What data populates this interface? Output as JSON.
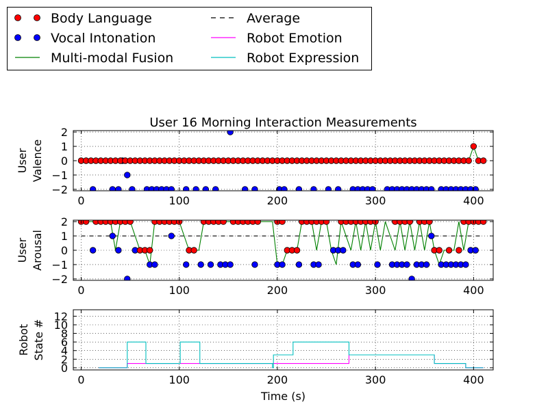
{
  "legend": {
    "items": [
      {
        "label": "Body Language",
        "kind": "marker",
        "color": "#ff0000"
      },
      {
        "label": "Vocal Intonation",
        "kind": "marker",
        "color": "#0000ff"
      },
      {
        "label": "Multi-modal Fusion",
        "kind": "line",
        "color": "#008000"
      },
      {
        "label": "Average",
        "kind": "dashed",
        "color": "#000000"
      },
      {
        "label": "Robot Emotion",
        "kind": "line",
        "color": "#ff00ff"
      },
      {
        "label": "Robot Expression",
        "kind": "line",
        "color": "#00bfbf"
      }
    ]
  },
  "chart_data": [
    {
      "type": "scatter",
      "title": "User 16 Morning Interaction Measurements",
      "ylabel": "User Valence",
      "xlabel": "",
      "xlim": [
        -8,
        420
      ],
      "ylim": [
        -2.1,
        2.1
      ],
      "xticks": [
        0,
        100,
        200,
        300,
        400
      ],
      "yticks": [
        -2,
        -1,
        0,
        1,
        2
      ],
      "grid": true,
      "series": [
        {
          "name": "Body Language",
          "color": "#ff0000",
          "x": [
            0,
            5,
            10,
            15,
            20,
            25,
            30,
            35,
            40,
            45,
            50,
            55,
            60,
            65,
            70,
            75,
            80,
            85,
            90,
            95,
            100,
            105,
            110,
            115,
            120,
            125,
            130,
            135,
            140,
            145,
            150,
            155,
            160,
            165,
            170,
            175,
            180,
            185,
            190,
            195,
            200,
            205,
            210,
            215,
            220,
            225,
            230,
            235,
            240,
            245,
            250,
            255,
            260,
            265,
            270,
            275,
            280,
            285,
            290,
            295,
            300,
            305,
            310,
            315,
            320,
            325,
            330,
            335,
            340,
            345,
            350,
            355,
            360,
            365,
            370,
            375,
            380,
            385,
            390,
            395,
            400,
            405,
            410
          ],
          "y": [
            0,
            0,
            0,
            0,
            0,
            0,
            0,
            0,
            0,
            0,
            0,
            0,
            0,
            0,
            0,
            0,
            0,
            0,
            0,
            0,
            0,
            0,
            0,
            0,
            0,
            0,
            0,
            0,
            0,
            0,
            0,
            0,
            0,
            0,
            0,
            0,
            0,
            0,
            0,
            0,
            0,
            0,
            0,
            0,
            0,
            0,
            0,
            0,
            0,
            0,
            0,
            0,
            0,
            0,
            0,
            0,
            0,
            0,
            0,
            0,
            0,
            0,
            0,
            0,
            0,
            0,
            0,
            0,
            0,
            0,
            0,
            0,
            0,
            0,
            0,
            0,
            0,
            0,
            0,
            0,
            1,
            0,
            0
          ]
        },
        {
          "name": "Vocal Intonation",
          "color": "#0000ff",
          "x": [
            12,
            32,
            38,
            42,
            47,
            52,
            67,
            72,
            77,
            82,
            87,
            92,
            107,
            117,
            127,
            137,
            152,
            167,
            177,
            202,
            207,
            222,
            237,
            252,
            262,
            277,
            282,
            287,
            292,
            297,
            312,
            317,
            322,
            327,
            332,
            337,
            342,
            347,
            352,
            357,
            367,
            372,
            377,
            382,
            387,
            392,
            397,
            402
          ],
          "y": [
            -2,
            -2,
            -2,
            0,
            -1,
            -2,
            -2,
            -2,
            -2,
            -2,
            -2,
            -2,
            -2,
            -2,
            -2,
            -2,
            2,
            -2,
            -2,
            -2,
            -2,
            -2,
            -2,
            -2,
            -2,
            -2,
            -2,
            -2,
            -2,
            -2,
            -2,
            -2,
            -2,
            -2,
            -2,
            -2,
            -2,
            -2,
            -2,
            -2,
            -2,
            -2,
            -2,
            -2,
            -2,
            -2,
            -2,
            -2
          ]
        },
        {
          "name": "Multi-modal Fusion",
          "color": "#008000",
          "x": [
            0,
            395,
            400,
            405,
            410
          ],
          "y": [
            0,
            0,
            1,
            0,
            0
          ]
        }
      ]
    },
    {
      "type": "scatter",
      "title": "",
      "ylabel": "User Arousal",
      "xlabel": "",
      "xlim": [
        -8,
        420
      ],
      "ylim": [
        -2.1,
        2.1
      ],
      "xticks": [
        0,
        100,
        200,
        300,
        400
      ],
      "yticks": [
        -2,
        -1,
        0,
        1,
        2
      ],
      "grid": true,
      "series": [
        {
          "name": "Body Language",
          "color": "#ff0000",
          "x": [
            0,
            5,
            15,
            20,
            25,
            30,
            35,
            40,
            45,
            50,
            60,
            65,
            70,
            75,
            80,
            85,
            90,
            95,
            100,
            110,
            115,
            125,
            130,
            135,
            140,
            145,
            155,
            160,
            165,
            170,
            175,
            180,
            200,
            205,
            210,
            215,
            220,
            225,
            230,
            235,
            240,
            245,
            250,
            265,
            270,
            275,
            280,
            285,
            290,
            295,
            300,
            320,
            325,
            330,
            335,
            345,
            350,
            355,
            360,
            365,
            375,
            385,
            390,
            395,
            400,
            405,
            410
          ],
          "y": [
            2,
            2,
            2,
            2,
            2,
            2,
            2,
            2,
            2,
            2,
            0,
            0,
            0,
            2,
            2,
            2,
            2,
            2,
            2,
            0,
            0,
            2,
            2,
            2,
            2,
            2,
            2,
            2,
            2,
            2,
            2,
            2,
            2,
            2,
            0,
            0,
            0,
            2,
            2,
            2,
            2,
            2,
            2,
            2,
            2,
            2,
            2,
            2,
            2,
            2,
            2,
            2,
            2,
            2,
            2,
            2,
            2,
            2,
            0,
            0,
            0,
            0,
            2,
            2,
            2,
            2,
            2
          ]
        },
        {
          "name": "Vocal Intonation",
          "color": "#0000ff",
          "x": [
            12,
            32,
            38,
            47,
            55,
            70,
            75,
            92,
            107,
            122,
            132,
            142,
            147,
            152,
            177,
            200,
            205,
            222,
            237,
            242,
            257,
            262,
            267,
            277,
            282,
            302,
            317,
            322,
            327,
            332,
            337,
            342,
            347,
            352,
            357,
            367,
            372,
            377,
            382,
            387,
            392,
            397,
            402
          ],
          "y": [
            0,
            1,
            0,
            -2,
            0,
            -1,
            -1,
            1,
            -1,
            -1,
            -1,
            -1,
            -1,
            -1,
            -1,
            -1,
            -1,
            -1,
            -1,
            -1,
            0,
            0,
            0,
            -1,
            -1,
            -1,
            -1,
            -1,
            -1,
            -1,
            -2,
            -1,
            -1,
            -1,
            1,
            -1,
            -1,
            -1,
            -1,
            -1,
            -1,
            0,
            0
          ]
        },
        {
          "name": "Multi-modal Fusion",
          "color": "#008000",
          "x": [
            0,
            10,
            30,
            35,
            40,
            50,
            60,
            65,
            70,
            75,
            80,
            100,
            110,
            115,
            120,
            125,
            150,
            155,
            180,
            195,
            200,
            205,
            210,
            215,
            220,
            225,
            235,
            240,
            245,
            250,
            255,
            260,
            265,
            275,
            280,
            285,
            290,
            295,
            300,
            305,
            310,
            320,
            325,
            330,
            335,
            340,
            345,
            350,
            355,
            360,
            365,
            370,
            380,
            385,
            390,
            395,
            400,
            410
          ],
          "y": [
            2,
            2,
            2,
            0,
            2,
            2,
            0,
            0,
            -1,
            2,
            2,
            2,
            0,
            0,
            0,
            2,
            2,
            2,
            2,
            2,
            -1,
            -1,
            0,
            0,
            0,
            2,
            2,
            0,
            2,
            2,
            0,
            -1,
            2,
            0,
            2,
            0,
            2,
            0,
            2,
            0,
            2,
            0,
            2,
            0,
            2,
            0,
            2,
            0,
            2,
            0,
            -1,
            0,
            0,
            2,
            0,
            2,
            2,
            2
          ]
        },
        {
          "name": "Average",
          "color": "#000000",
          "x": [
            0,
            410
          ],
          "y": [
            1,
            1
          ]
        }
      ]
    },
    {
      "type": "line",
      "title": "",
      "ylabel": "Robot State #",
      "xlabel": "Time (s)",
      "xlim": [
        -8,
        420
      ],
      "ylim": [
        -0.5,
        13.5
      ],
      "xticks": [
        0,
        100,
        200,
        300,
        400
      ],
      "yticks": [
        0,
        2,
        4,
        6,
        8,
        10,
        12
      ],
      "grid": true,
      "series": [
        {
          "name": "Robot Emotion",
          "color": "#ff00ff",
          "step": true,
          "x": [
            18,
            46,
            47,
            200,
            215,
            216,
            272,
            273,
            360,
            392,
            410
          ],
          "y": [
            0,
            0,
            1,
            1,
            1,
            1,
            1,
            3,
            1,
            0,
            0
          ]
        },
        {
          "name": "Robot Expression",
          "color": "#00bfbf",
          "step": true,
          "x": [
            18,
            46,
            47,
            65,
            66,
            100,
            101,
            120,
            121,
            168,
            195,
            196,
            215,
            216,
            272,
            273,
            360,
            392,
            410
          ],
          "y": [
            0,
            0,
            6,
            6,
            1,
            1,
            6,
            6,
            1,
            1,
            0,
            3,
            3,
            6,
            6,
            3,
            1,
            0,
            0
          ]
        }
      ]
    }
  ]
}
